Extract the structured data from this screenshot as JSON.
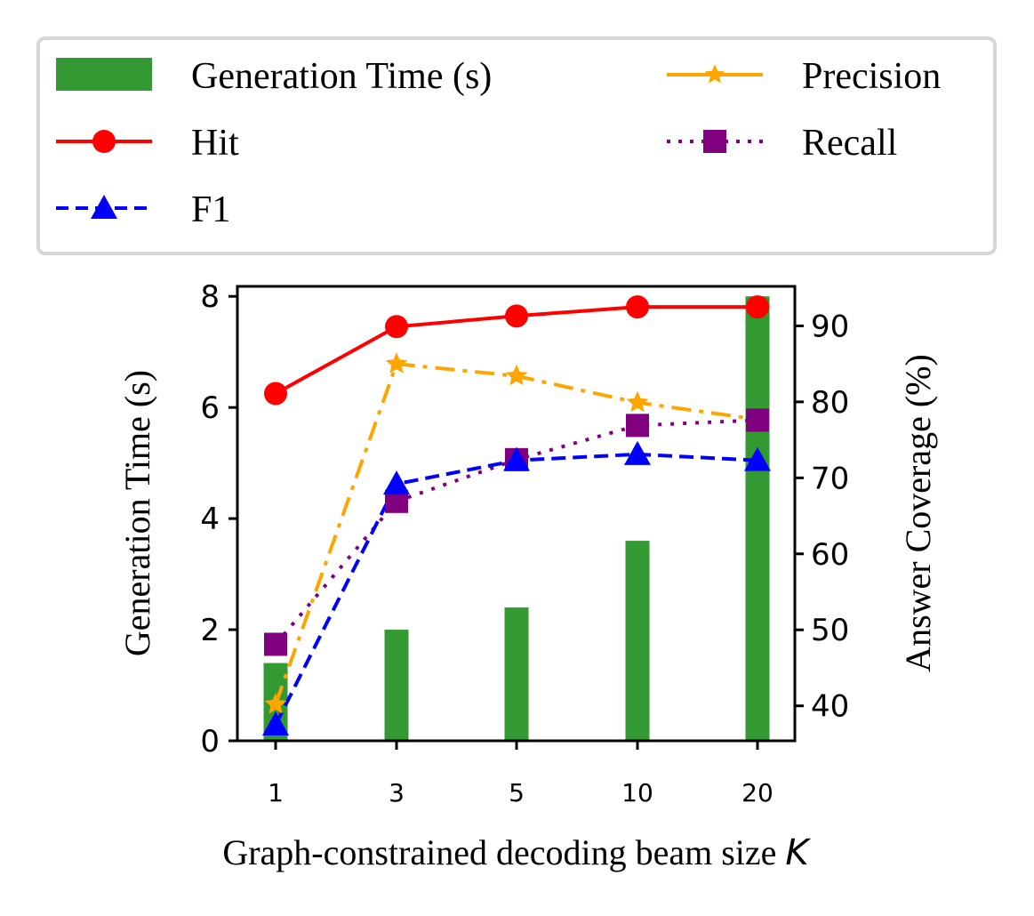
{
  "chart_data": {
    "type": "bar+line",
    "title": "",
    "xlabel": "Graph-constrained decoding beam size",
    "xlabel_italic_symbol": "K",
    "ylabel_left": "Generation Time (s)",
    "ylabel_right": "Answer Coverage (%)",
    "categories": [
      "1",
      "3",
      "5",
      "10",
      "20"
    ],
    "ylim_left": [
      0,
      8.18
    ],
    "ylim_right": [
      35.4,
      95.2
    ],
    "yticks_left": [
      0,
      2,
      4,
      6,
      8
    ],
    "yticks_right": [
      40,
      50,
      60,
      70,
      80,
      90
    ],
    "grid": false,
    "legend_placement": "top (above plot, 2 columns)",
    "bar_series": {
      "name": "Generation Time (s)",
      "axis": "left",
      "color": "#339933",
      "values": [
        1.4,
        2.0,
        2.4,
        3.6,
        8.0
      ]
    },
    "series": [
      {
        "name": "Hit",
        "axis": "right",
        "color": "#ff0000",
        "linestyle": "solid",
        "marker": "circle",
        "values": [
          81.1,
          89.9,
          91.3,
          92.5,
          92.5
        ]
      },
      {
        "name": "Precision",
        "axis": "right",
        "color": "#ffa500",
        "linestyle": "dashdot",
        "marker": "star",
        "values": [
          40.2,
          85.0,
          83.4,
          79.9,
          77.7
        ]
      },
      {
        "name": "Recall",
        "axis": "right",
        "color": "#800080",
        "linestyle": "dotted",
        "marker": "square",
        "values": [
          48.1,
          66.9,
          72.4,
          76.9,
          77.6
        ]
      },
      {
        "name": "F1",
        "axis": "right",
        "color": "#0000ff",
        "linestyle": "dashed",
        "marker": "triangle",
        "values": [
          37.5,
          69.2,
          72.3,
          73.1,
          72.3
        ]
      }
    ],
    "legend": [
      {
        "label": "Generation Time (s)",
        "kind": "bar",
        "color": "#339933"
      },
      {
        "label": "Hit",
        "kind": "line",
        "series": 0
      },
      {
        "label": "F1",
        "kind": "line",
        "series": 3
      },
      {
        "label": "Precision",
        "kind": "line",
        "series": 1
      },
      {
        "label": "Recall",
        "kind": "line",
        "series": 2
      }
    ]
  }
}
